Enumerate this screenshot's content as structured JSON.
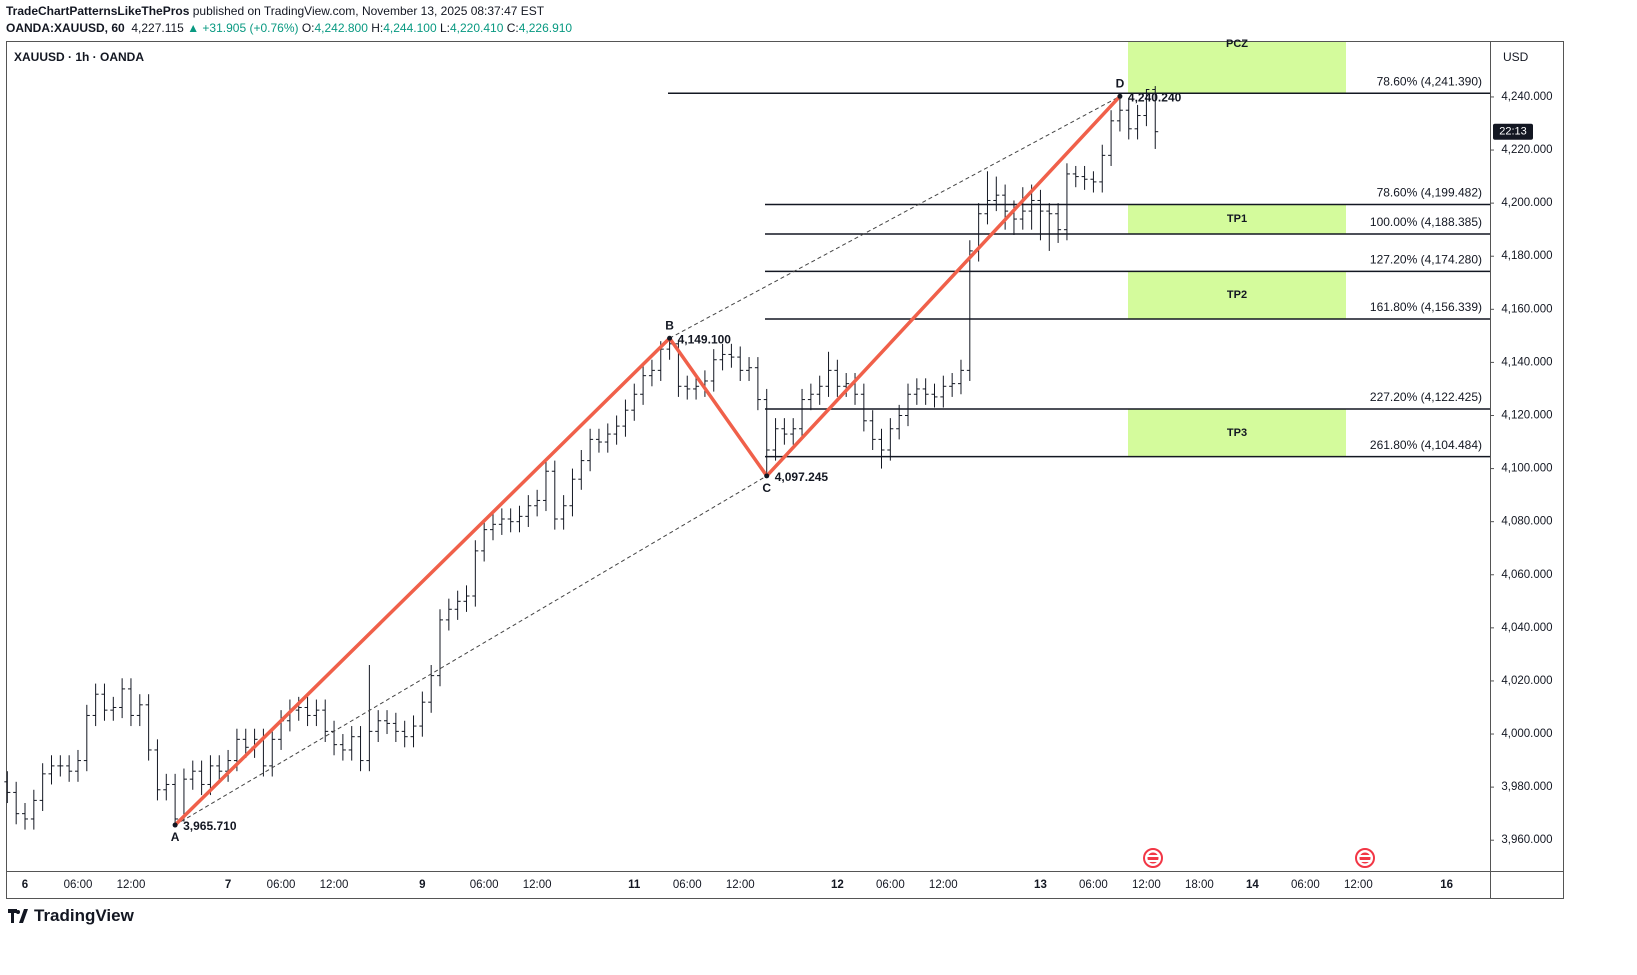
{
  "header": {
    "author": "TradeChartPatternsLikeThePros",
    "published": "published on TradingView.com, November 13, 2025 08:37:47 EST"
  },
  "symbol": {
    "name": "OANDA:XAUUSD, 60",
    "price": "4,227.115",
    "change": "▲ +31.905 (+0.76%)",
    "o_label": "O:",
    "o": "4,242.800",
    "h_label": "H:",
    "h": "4,244.100",
    "l_label": "L:",
    "l": "4,220.410",
    "c_label": "C:",
    "c": "4,226.910"
  },
  "footer": {
    "brand": "TradingView"
  },
  "chart_data": {
    "type": "ohlc",
    "title": "XAUUSD · 1h · OANDA",
    "currency": "USD",
    "countdown": "22:13",
    "color": "#131722",
    "categories": [
      null,
      null,
      "6",
      null,
      null,
      null,
      null,
      null,
      "06:00",
      null,
      null,
      null,
      null,
      null,
      "12:00",
      null,
      null,
      null,
      null,
      null,
      null,
      null,
      null,
      null,
      null,
      "7",
      null,
      null,
      null,
      null,
      null,
      "06:00",
      null,
      null,
      null,
      null,
      null,
      "12:00",
      null,
      null,
      null,
      null,
      null,
      null,
      null,
      null,
      null,
      "9",
      null,
      null,
      null,
      null,
      null,
      null,
      "06:00",
      null,
      null,
      null,
      null,
      null,
      "12:00",
      null,
      null,
      null,
      null,
      null,
      null,
      null,
      null,
      null,
      null,
      "11",
      null,
      null,
      null,
      null,
      null,
      "06:00",
      null,
      null,
      null,
      null,
      null,
      "12:00",
      null,
      null,
      null,
      null,
      null,
      null,
      null,
      null,
      null,
      null,
      "12",
      null,
      null,
      null,
      null,
      null,
      "06:00",
      null,
      null,
      null,
      null,
      null,
      "12:00",
      null,
      null,
      null,
      null,
      null,
      null,
      null,
      null,
      null,
      null,
      "13",
      null,
      null,
      null,
      null,
      null,
      "06:00",
      null,
      null,
      null,
      null,
      null,
      "12:00",
      null,
      null,
      null,
      null,
      null,
      "18:00",
      null,
      null,
      null,
      null,
      null,
      "14",
      null,
      null,
      null,
      null,
      null,
      "06:00",
      null,
      null,
      null,
      null,
      null,
      "12:00",
      null,
      null,
      null,
      null,
      null,
      null,
      null,
      null,
      null,
      "16",
      null,
      null,
      null,
      null
    ],
    "open": [
      3982,
      3978,
      3970,
      3968,
      3975,
      3985,
      3988,
      3988,
      3986,
      3990,
      4007,
      4015,
      4009,
      4010,
      4017,
      4007,
      4011,
      3994,
      3979,
      3981,
      3968,
      3983,
      3986,
      3981,
      3988,
      3986,
      3990,
      3998,
      3995,
      3998,
      3988,
      3998,
      4005,
      4009,
      4010,
      4007,
      4009,
      4001,
      3996,
      3994,
      3999,
      3990,
      4001,
      4005,
      4004,
      4001,
      3999,
      4003,
      4012,
      4022,
      4043,
      4047,
      4050,
      4052,
      4069,
      4077,
      4079,
      4081,
      4080,
      4082,
      4086,
      4088,
      4099,
      4081,
      4086,
      4096,
      4103,
      4111,
      4110,
      4113,
      4116,
      4122,
      4128,
      4135,
      4137,
      4145,
      4147,
      4131,
      4130,
      4131,
      4133,
      4141,
      4143,
      4142,
      4137,
      4138,
      4126,
      4107,
      4115,
      4113,
      4115,
      4126,
      4128,
      4131,
      4137,
      4131,
      4132,
      4128,
      4118,
      4111,
      4107,
      4115,
      4120,
      4128,
      4130,
      4128,
      4127,
      4131,
      4132,
      4137,
      4182,
      4196,
      4201,
      4203,
      4197,
      4194,
      4197,
      4201,
      4197,
      4196,
      4190,
      4211,
      4210,
      4209,
      4208,
      4218,
      4231,
      4235,
      4228,
      4233,
      4242.8,
      null,
      null,
      null,
      null,
      null,
      null,
      null,
      null,
      null,
      null,
      null,
      null,
      null,
      null,
      null,
      null,
      null,
      null,
      null,
      null,
      null,
      null,
      null,
      null,
      null,
      null,
      null,
      null,
      null,
      null,
      null,
      null,
      null,
      null,
      null,
      null,
      null
    ],
    "high": [
      3986,
      3982,
      3974,
      3979,
      3989,
      3992,
      3992,
      3992,
      3994,
      4011,
      4019,
      4019,
      4014,
      4021,
      4021,
      4015,
      4015,
      3998,
      3985,
      3985,
      3987,
      3990,
      3990,
      3992,
      3992,
      3994,
      4002,
      4002,
      4002,
      4002,
      4002,
      4009,
      4013,
      4014,
      4014,
      4013,
      4013,
      4005,
      4000,
      4003,
      4003,
      4026,
      4009,
      4009,
      4008,
      4005,
      4007,
      4016,
      4026,
      4047,
      4051,
      4054,
      4056,
      4073,
      4081,
      4083,
      4085,
      4085,
      4086,
      4090,
      4092,
      4103,
      4103,
      4090,
      4100,
      4107,
      4115,
      4115,
      4117,
      4120,
      4126,
      4132,
      4139,
      4141,
      4148,
      4149.1,
      4148,
      4135,
      4135,
      4137,
      4145,
      4147,
      4147,
      4146,
      4142,
      4142,
      4130,
      4119,
      4119,
      4119,
      4130,
      4132,
      4135,
      4144,
      4141,
      4136,
      4136,
      4132,
      4122,
      4115,
      4119,
      4124,
      4132,
      4134,
      4134,
      4132,
      4135,
      4136,
      4141,
      4186,
      4200,
      4212,
      4210,
      4207,
      4201,
      4206,
      4207,
      4205,
      4200,
      4200,
      4215,
      4214,
      4214,
      4212,
      4222,
      4235,
      4240.24,
      4239,
      4237,
      4243,
      4244.1,
      null,
      null,
      null,
      null,
      null,
      null,
      null,
      null,
      null,
      null,
      null,
      null,
      null,
      null,
      null,
      null,
      null,
      null,
      null,
      null,
      null,
      null,
      null,
      null,
      null,
      null,
      null,
      null,
      null,
      null,
      null,
      null,
      null,
      null,
      null,
      null,
      null
    ],
    "low": [
      3974,
      3966,
      3964,
      3964,
      3971,
      3981,
      3984,
      3982,
      3982,
      3986,
      4003,
      4005,
      4005,
      4006,
      4003,
      4003,
      3990,
      3975,
      3975,
      3965.71,
      3967,
      3979,
      3977,
      3977,
      3982,
      3982,
      3986,
      3991,
      3991,
      3984,
      3984,
      3994,
      4001,
      4005,
      4003,
      4003,
      3997,
      3992,
      3990,
      3990,
      3986,
      3986,
      3997,
      4000,
      3997,
      3995,
      3995,
      3999,
      4008,
      4018,
      4039,
      4043,
      4046,
      4048,
      4065,
      4073,
      4075,
      4076,
      4076,
      4078,
      4082,
      4084,
      4077,
      4077,
      4082,
      4092,
      4099,
      4106,
      4106,
      4109,
      4112,
      4118,
      4124,
      4131,
      4133,
      4141,
      4127,
      4126,
      4126,
      4127,
      4129,
      4137,
      4138,
      4133,
      4133,
      4122,
      4097.245,
      4103,
      4109,
      4109,
      4111,
      4122,
      4124,
      4127,
      4127,
      4127,
      4124,
      4114,
      4107,
      4100,
      4103,
      4111,
      4116,
      4124,
      4124,
      4123,
      4123,
      4127,
      4128,
      4133,
      4178,
      4192,
      4197,
      4190,
      4188,
      4190,
      4190,
      4186,
      4182,
      4185,
      4186,
      4206,
      4205,
      4204,
      4204,
      4214,
      4227,
      4224,
      4224,
      4229,
      4220.41,
      null,
      null,
      null,
      null,
      null,
      null,
      null,
      null,
      null,
      null,
      null,
      null,
      null,
      null,
      null,
      null,
      null,
      null,
      null,
      null,
      null,
      null,
      null,
      null,
      null,
      null,
      null,
      null,
      null,
      null,
      null,
      null,
      null,
      null,
      null,
      null,
      null
    ],
    "close": [
      3978,
      3970,
      3968,
      3975,
      3985,
      3988,
      3988,
      3986,
      3990,
      4007,
      4015,
      4009,
      4010,
      4017,
      4007,
      4011,
      3994,
      3979,
      3981,
      3968,
      3983,
      3986,
      3981,
      3988,
      3986,
      3990,
      3998,
      3995,
      3998,
      3988,
      3998,
      4005,
      4009,
      4010,
      4007,
      4009,
      4001,
      3996,
      3994,
      3999,
      3990,
      4001,
      4005,
      4004,
      4001,
      3999,
      4003,
      4012,
      4022,
      4043,
      4047,
      4050,
      4052,
      4069,
      4077,
      4079,
      4081,
      4080,
      4082,
      4086,
      4088,
      4099,
      4081,
      4086,
      4096,
      4103,
      4111,
      4110,
      4113,
      4116,
      4122,
      4128,
      4135,
      4137,
      4145,
      4147,
      4131,
      4130,
      4131,
      4133,
      4141,
      4143,
      4142,
      4137,
      4138,
      4126,
      4107,
      4115,
      4113,
      4115,
      4126,
      4128,
      4131,
      4137,
      4131,
      4132,
      4128,
      4118,
      4111,
      4107,
      4115,
      4120,
      4128,
      4130,
      4128,
      4127,
      4131,
      4132,
      4137,
      4182,
      4196,
      4201,
      4203,
      4197,
      4194,
      4197,
      4201,
      4197,
      4196,
      4190,
      4211,
      4210,
      4209,
      4208,
      4218,
      4231,
      4235,
      4228,
      4233,
      4242.8,
      4226.91,
      null,
      null,
      null,
      null,
      null,
      null,
      null,
      null,
      null,
      null,
      null,
      null,
      null,
      null,
      null,
      null,
      null,
      null,
      null,
      null,
      null,
      null,
      null,
      null,
      null,
      null,
      null,
      null,
      null,
      null,
      null,
      null,
      null,
      null,
      null,
      null,
      null
    ],
    "ylim": [
      3948.4,
      4260.7
    ],
    "yticks": [
      {
        "value": 3960,
        "label": "3,960.000"
      },
      {
        "value": 3980,
        "label": "3,980.000"
      },
      {
        "value": 4000,
        "label": "4,000.000"
      },
      {
        "value": 4020,
        "label": "4,020.000"
      },
      {
        "value": 4040,
        "label": "4,040.000"
      },
      {
        "value": 4060,
        "label": "4,060.000"
      },
      {
        "value": 4080,
        "label": "4,080.000"
      },
      {
        "value": 4100,
        "label": "4,100.000"
      },
      {
        "value": 4120,
        "label": "4,120.000"
      },
      {
        "value": 4140,
        "label": "4,140.000"
      },
      {
        "value": 4160,
        "label": "4,160.000"
      },
      {
        "value": 4180,
        "label": "4,180.000"
      },
      {
        "value": 4200,
        "label": "4,200.000"
      },
      {
        "value": 4220,
        "label": "4,220.000"
      },
      {
        "value": 4240,
        "label": "4,240.000"
      }
    ],
    "pattern": {
      "color": "#f0604a",
      "names": [
        "A",
        "B",
        "C",
        "D"
      ],
      "values": [
        3965.71,
        4149.1,
        4097.245,
        4240.24
      ],
      "value_labels": [
        "3,965.710",
        "4,149.100",
        "4,097.245",
        "4,240.240"
      ]
    },
    "levels": [
      {
        "label": "78.60% (4,241.390)",
        "value": 4241.39
      },
      {
        "label": "78.60% (4,199.482)",
        "value": 4199.482
      },
      {
        "label": "100.00% (4,188.385)",
        "value": 4188.385
      },
      {
        "label": "127.20% (4,174.280)",
        "value": 4174.28
      },
      {
        "label": "161.80% (4,156.339)",
        "value": 4156.339
      },
      {
        "label": "227.20% (4,122.425)",
        "value": 4122.425
      },
      {
        "label": "261.80% (4,104.484)",
        "value": 4104.484
      }
    ],
    "zones": [
      {
        "name": "PCZ",
        "low": 4241.39,
        "high": null
      },
      {
        "name": "TP1",
        "low": 4188.385,
        "high": 4199.482
      },
      {
        "name": "TP2",
        "low": 4156.339,
        "high": 4174.28
      },
      {
        "name": "TP3",
        "low": 4104.484,
        "high": 4122.425
      }
    ],
    "zone_color": "#d4fb9c"
  }
}
